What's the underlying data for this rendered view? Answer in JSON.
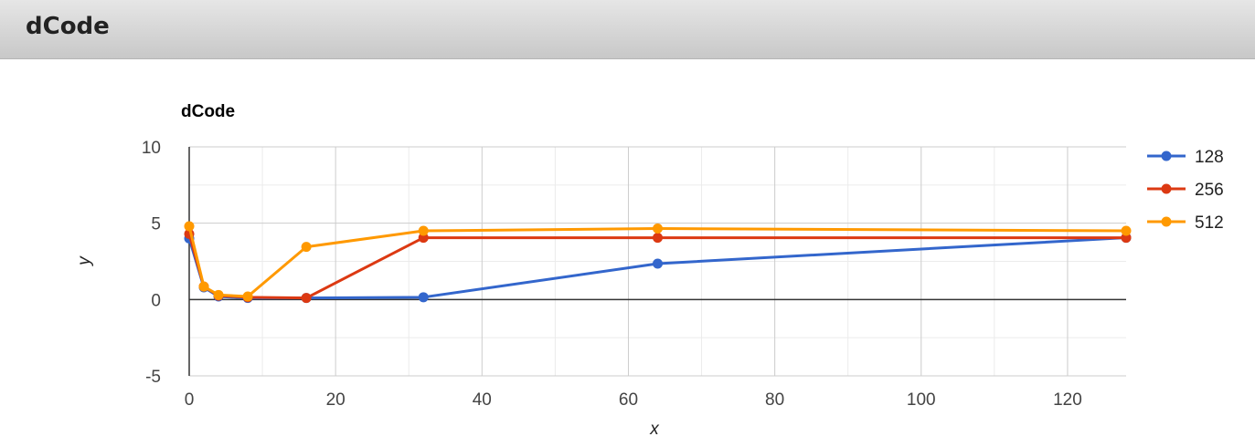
{
  "page": {
    "header_title": "dCode"
  },
  "chart_data": {
    "type": "line",
    "title": "dCode",
    "xlabel": "x",
    "ylabel": "y",
    "xlim": [
      0,
      128
    ],
    "ylim": [
      -5,
      10
    ],
    "xticks": [
      0,
      20,
      40,
      60,
      80,
      100,
      120
    ],
    "yticks": [
      -5,
      0,
      5,
      10
    ],
    "grid": true,
    "legend_position": "right",
    "series": [
      {
        "name": "128",
        "color": "#3366cc",
        "points": [
          [
            0,
            4.0
          ],
          [
            2,
            0.8
          ],
          [
            4,
            0.2
          ],
          [
            8,
            0.1
          ],
          [
            16,
            0.1
          ],
          [
            32,
            0.15
          ],
          [
            64,
            2.35
          ],
          [
            128,
            4.05
          ]
        ]
      },
      {
        "name": "256",
        "color": "#dc3912",
        "points": [
          [
            0,
            4.3
          ],
          [
            2,
            0.85
          ],
          [
            4,
            0.25
          ],
          [
            8,
            0.15
          ],
          [
            16,
            0.1
          ],
          [
            32,
            4.05
          ],
          [
            64,
            4.05
          ],
          [
            128,
            4.05
          ]
        ]
      },
      {
        "name": "512",
        "color": "#ff9900",
        "points": [
          [
            0,
            4.8
          ],
          [
            2,
            0.85
          ],
          [
            4,
            0.3
          ],
          [
            8,
            0.2
          ],
          [
            16,
            3.45
          ],
          [
            32,
            4.5
          ],
          [
            64,
            4.65
          ],
          [
            128,
            4.5
          ]
        ]
      }
    ]
  }
}
